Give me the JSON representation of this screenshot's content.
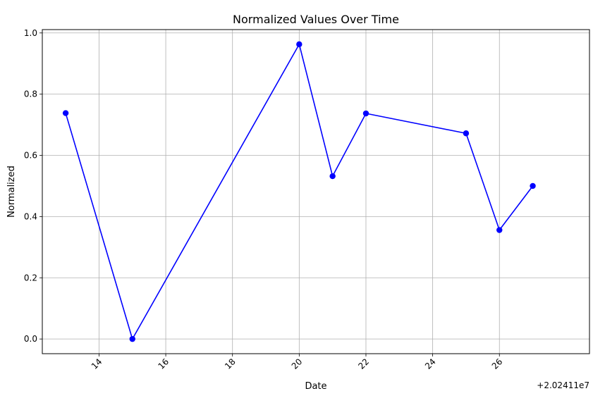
{
  "chart_data": {
    "type": "line",
    "title": "Normalized Values Over Time",
    "xlabel": "Date",
    "ylabel": "Normalized",
    "x_offset_text": "+2.02411e7",
    "x": [
      13,
      15,
      20,
      21,
      22,
      25,
      26,
      27
    ],
    "series": [
      {
        "values": [
          0.738,
          0.0,
          0.963,
          0.532,
          0.737,
          0.672,
          0.356,
          0.5
        ],
        "color": "#0000ff",
        "marker": "circle"
      }
    ],
    "xlim": [
      12.3,
      28.7
    ],
    "ylim": [
      -0.048,
      1.011
    ],
    "xticks": [
      14,
      16,
      18,
      20,
      22,
      24,
      26
    ],
    "xtick_labels": [
      "14",
      "16",
      "18",
      "20",
      "22",
      "24",
      "26"
    ],
    "yticks": [
      0.0,
      0.2,
      0.4,
      0.6,
      0.8,
      1.0
    ],
    "ytick_labels": [
      "0.0",
      "0.2",
      "0.4",
      "0.6",
      "0.8",
      "1.0"
    ],
    "xtick_rotation": 45,
    "grid": true
  }
}
